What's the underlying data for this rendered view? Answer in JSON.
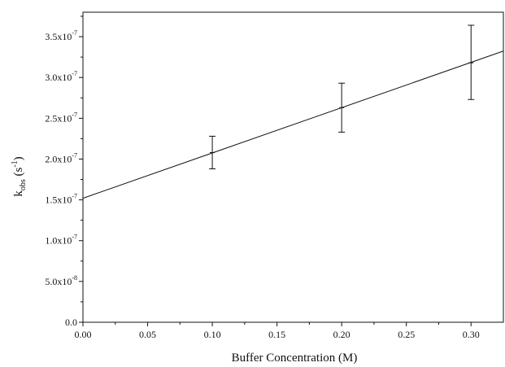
{
  "chart_data": {
    "type": "scatter",
    "xlabel": "Buffer Concentration (M)",
    "ylabel": {
      "base": "k",
      "subscript": "obs",
      "unit_open": " (s",
      "unit_sup": "-1",
      "unit_close": ")"
    },
    "xlim": [
      0.0,
      0.325
    ],
    "ylim": [
      0.0,
      3.8e-07
    ],
    "grid": false,
    "x_ticks": [
      {
        "value": 0.0,
        "label": "0.00"
      },
      {
        "value": 0.05,
        "label": "0.05"
      },
      {
        "value": 0.1,
        "label": "0.10"
      },
      {
        "value": 0.15,
        "label": "0.15"
      },
      {
        "value": 0.2,
        "label": "0.20"
      },
      {
        "value": 0.25,
        "label": "0.25"
      },
      {
        "value": 0.3,
        "label": "0.30"
      }
    ],
    "y_ticks": [
      {
        "value": 0.0,
        "mantissa": "0.0",
        "exponent": ""
      },
      {
        "value": 5e-08,
        "mantissa": "5.0x10",
        "exponent": "-8"
      },
      {
        "value": 1e-07,
        "mantissa": "1.0x10",
        "exponent": "-7"
      },
      {
        "value": 1.5e-07,
        "mantissa": "1.5x10",
        "exponent": "-7"
      },
      {
        "value": 2e-07,
        "mantissa": "2.0x10",
        "exponent": "-7"
      },
      {
        "value": 2.5e-07,
        "mantissa": "2.5x10",
        "exponent": "-7"
      },
      {
        "value": 3e-07,
        "mantissa": "3.0x10",
        "exponent": "-7"
      },
      {
        "value": 3.5e-07,
        "mantissa": "3.5x10",
        "exponent": "-7"
      }
    ],
    "points": [
      {
        "x": 0.1,
        "y": 2.08e-07,
        "err_low": 1.88e-07,
        "err_high": 2.28e-07
      },
      {
        "x": 0.2,
        "y": 2.63e-07,
        "err_low": 2.33e-07,
        "err_high": 2.93e-07
      },
      {
        "x": 0.3,
        "y": 3.18e-07,
        "err_low": 2.73e-07,
        "err_high": 3.64e-07
      }
    ],
    "fit_line": {
      "intercept": 1.52e-07,
      "slope": 5.55e-07,
      "x_start": 0.0,
      "x_end": 0.325
    }
  },
  "colors": {
    "axis": "#111111",
    "line": "#111111",
    "background": "#ffffff"
  }
}
